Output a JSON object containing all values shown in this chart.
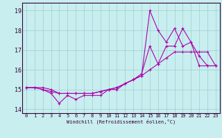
{
  "xlabel": "Windchill (Refroidissement éolien,°C)",
  "background_color": "#c8eef0",
  "grid_color": "#9ecfcd",
  "line_color": "#aa00aa",
  "xlim_min": -0.5,
  "xlim_max": 23.5,
  "ylim_min": 13.8,
  "ylim_max": 19.4,
  "yticks": [
    14,
    15,
    16,
    17,
    18,
    19
  ],
  "xticks": [
    0,
    1,
    2,
    3,
    4,
    5,
    6,
    7,
    8,
    9,
    10,
    11,
    12,
    13,
    14,
    15,
    16,
    17,
    18,
    19,
    20,
    21,
    22,
    23
  ],
  "series": [
    [
      15.1,
      15.1,
      15.0,
      14.8,
      14.3,
      14.7,
      14.5,
      14.7,
      14.7,
      14.7,
      15.0,
      15.0,
      15.3,
      15.5,
      15.8,
      17.2,
      16.3,
      17.2,
      17.2,
      18.1,
      17.4,
      16.2,
      16.2,
      16.2
    ],
    [
      15.1,
      15.1,
      15.0,
      14.9,
      14.8,
      14.8,
      14.8,
      14.8,
      14.8,
      14.9,
      15.0,
      15.1,
      15.3,
      15.5,
      15.7,
      16.0,
      16.3,
      16.6,
      16.9,
      16.9,
      16.9,
      16.9,
      16.9,
      16.2
    ],
    [
      15.1,
      15.1,
      15.1,
      15.0,
      14.8,
      14.8,
      14.8,
      14.8,
      14.8,
      14.9,
      15.0,
      15.1,
      15.3,
      15.5,
      15.7,
      19.0,
      18.0,
      17.4,
      18.1,
      17.2,
      17.4,
      16.7,
      16.2,
      16.2
    ]
  ],
  "tick_fontsize": 5,
  "xlabel_fontsize": 5,
  "xlabel_color": "#330033",
  "spine_color": "#330033",
  "linewidth": 0.8,
  "markersize": 3.0
}
